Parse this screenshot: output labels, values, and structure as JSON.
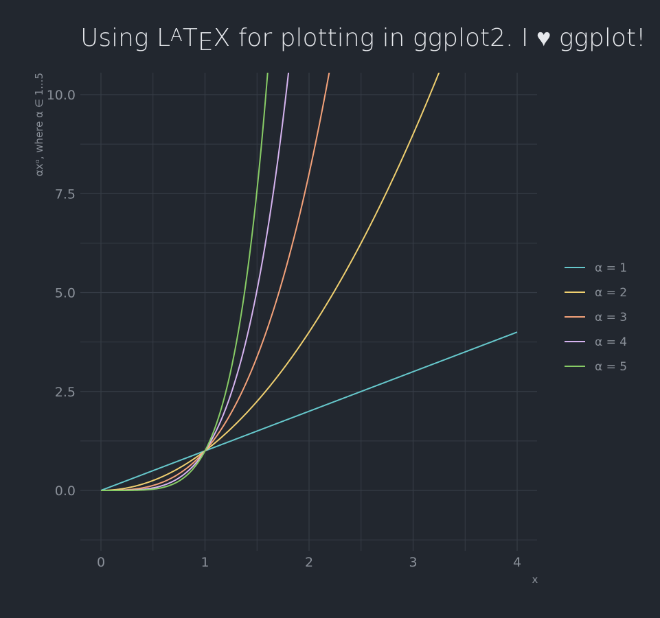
{
  "chart_data": {
    "type": "line",
    "title": {
      "prefix": "Using ",
      "latex_L": "L",
      "latex_A": "A",
      "latex_T": "T",
      "latex_E": "E",
      "latex_X": "X",
      "suffix": " for plotting in ggplot2. I ♥ ggplot!"
    },
    "xlabel": "x",
    "ylabel": "αxᵅ, where α ∈ 1...5",
    "xlim": [
      -0.2,
      4.2
    ],
    "ylim": [
      -1.25,
      10.5
    ],
    "x_ticks": [
      0,
      1,
      2,
      3,
      4
    ],
    "x_tick_labels": [
      "0",
      "1",
      "2",
      "3",
      "4"
    ],
    "y_ticks": [
      0,
      2.5,
      5,
      7.5,
      10
    ],
    "y_tick_labels": [
      "0.0",
      "2.5",
      "5.0",
      "7.5",
      "10.0"
    ],
    "x_range": [
      0,
      4
    ],
    "formula": "y = x^alpha",
    "grid": true,
    "legend_position": "right",
    "series": [
      {
        "name": "α = 1",
        "alpha": 1,
        "color": "#66c8cc"
      },
      {
        "name": "α = 2",
        "alpha": 2,
        "color": "#f0d070"
      },
      {
        "name": "α = 3",
        "alpha": 3,
        "color": "#f4a27a"
      },
      {
        "name": "α = 4",
        "alpha": 4,
        "color": "#d6b4f0"
      },
      {
        "name": "α = 5",
        "alpha": 5,
        "color": "#88cc66"
      }
    ]
  },
  "colors": {
    "background": "#22272f",
    "grid": "#363c46",
    "text": "#8a9099",
    "title": "#e6e8ec"
  }
}
